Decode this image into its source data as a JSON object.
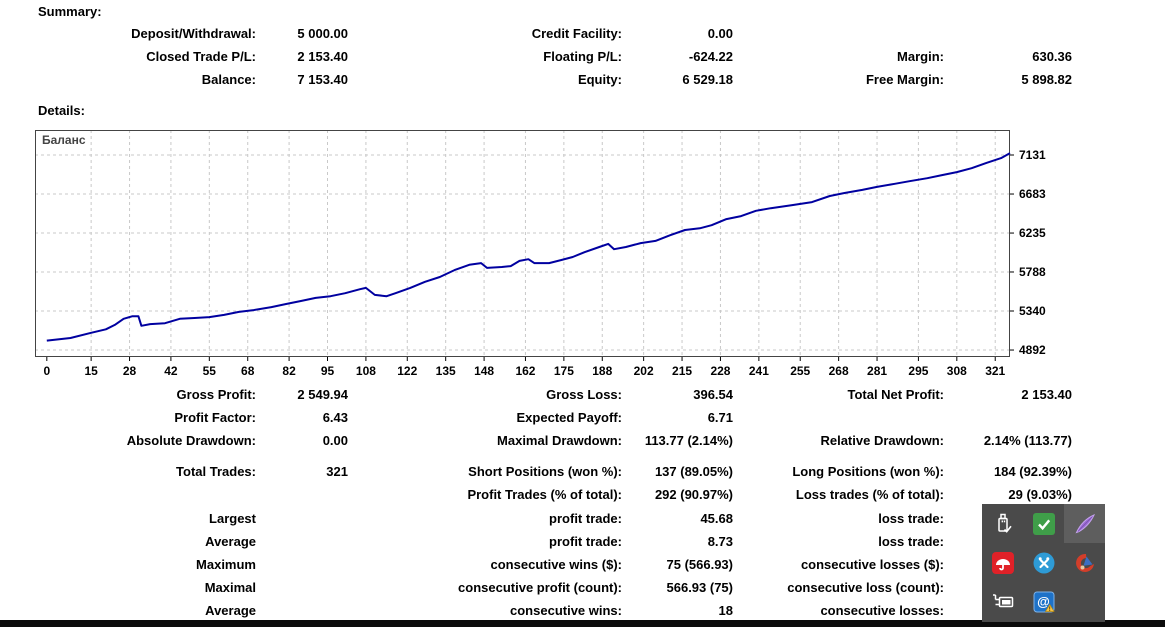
{
  "summary": {
    "heading": "Summary:",
    "rows": [
      [
        "Deposit/Withdrawal:",
        "5 000.00",
        "Credit Facility:",
        "0.00",
        "",
        ""
      ],
      [
        "Closed Trade P/L:",
        "2 153.40",
        "Floating P/L:",
        "-624.22",
        "Margin:",
        "630.36"
      ],
      [
        "Balance:",
        "7 153.40",
        "Equity:",
        "6 529.18",
        "Free Margin:",
        "5 898.82"
      ]
    ]
  },
  "details": {
    "heading": "Details:"
  },
  "stats": {
    "rows": [
      [
        "Gross Profit:",
        "2 549.94",
        "Gross Loss:",
        "396.54",
        "Total Net Profit:",
        "2 153.40"
      ],
      [
        "Profit Factor:",
        "6.43",
        "Expected Payoff:",
        "6.71",
        "",
        ""
      ],
      [
        "Absolute Drawdown:",
        "0.00",
        "Maximal Drawdown:",
        "113.77 (2.14%)",
        "Relative Drawdown:",
        "2.14% (113.77)"
      ]
    ]
  },
  "trades": {
    "rows": [
      [
        "Total Trades:",
        "321",
        "Short Positions (won %):",
        "137 (89.05%)",
        "Long Positions (won %):",
        "184 (92.39%)"
      ],
      [
        "",
        "",
        "Profit Trades (% of total):",
        "292 (90.97%)",
        "Loss trades (% of total):",
        "29 (9.03%)"
      ],
      [
        "Largest",
        "",
        "profit trade:",
        "45.68",
        "loss trade:",
        ""
      ],
      [
        "Average",
        "",
        "profit trade:",
        "8.73",
        "loss trade:",
        ""
      ],
      [
        "Maximum",
        "",
        "consecutive wins ($):",
        "75 (566.93)",
        "consecutive losses ($):",
        ""
      ],
      [
        "Maximal",
        "",
        "consecutive profit (count):",
        "566.93 (75)",
        "consecutive loss (count):",
        ""
      ],
      [
        "Average",
        "",
        "consecutive wins:",
        "18",
        "consecutive losses:",
        ""
      ]
    ]
  },
  "chart_data": {
    "type": "line",
    "title": "Баланс",
    "xlabel": "",
    "ylabel": "",
    "grid": true,
    "legend_position": "top-left",
    "x_ticks": [
      0,
      15,
      28,
      42,
      55,
      68,
      82,
      95,
      108,
      122,
      135,
      148,
      162,
      175,
      188,
      202,
      215,
      228,
      241,
      255,
      268,
      281,
      295,
      308,
      321
    ],
    "y_ticks": [
      4892,
      5340,
      5788,
      6235,
      6683,
      7131
    ],
    "xlim": [
      -4,
      326
    ],
    "ylim": [
      4812,
      7418
    ],
    "series": [
      {
        "name": "Баланс",
        "color": "#0000A0",
        "points": [
          [
            0,
            5000
          ],
          [
            8,
            5030
          ],
          [
            15,
            5090
          ],
          [
            20,
            5130
          ],
          [
            23,
            5180
          ],
          [
            26,
            5250
          ],
          [
            29,
            5280
          ],
          [
            31,
            5280
          ],
          [
            32,
            5170
          ],
          [
            35,
            5190
          ],
          [
            40,
            5200
          ],
          [
            45,
            5250
          ],
          [
            50,
            5260
          ],
          [
            55,
            5270
          ],
          [
            60,
            5295
          ],
          [
            65,
            5330
          ],
          [
            70,
            5350
          ],
          [
            76,
            5385
          ],
          [
            81,
            5420
          ],
          [
            86,
            5455
          ],
          [
            91,
            5490
          ],
          [
            96,
            5510
          ],
          [
            101,
            5545
          ],
          [
            106,
            5590
          ],
          [
            108,
            5605
          ],
          [
            111,
            5525
          ],
          [
            115,
            5510
          ],
          [
            118,
            5545
          ],
          [
            123,
            5605
          ],
          [
            128,
            5675
          ],
          [
            133,
            5730
          ],
          [
            138,
            5810
          ],
          [
            143,
            5870
          ],
          [
            147,
            5890
          ],
          [
            149,
            5835
          ],
          [
            154,
            5845
          ],
          [
            157,
            5855
          ],
          [
            160,
            5915
          ],
          [
            163,
            5935
          ],
          [
            165,
            5890
          ],
          [
            170,
            5890
          ],
          [
            174,
            5925
          ],
          [
            178,
            5960
          ],
          [
            182,
            6015
          ],
          [
            187,
            6075
          ],
          [
            190,
            6110
          ],
          [
            192,
            6050
          ],
          [
            196,
            6075
          ],
          [
            201,
            6120
          ],
          [
            206,
            6145
          ],
          [
            211,
            6210
          ],
          [
            216,
            6270
          ],
          [
            221,
            6290
          ],
          [
            225,
            6325
          ],
          [
            230,
            6395
          ],
          [
            235,
            6430
          ],
          [
            240,
            6490
          ],
          [
            245,
            6520
          ],
          [
            252,
            6555
          ],
          [
            259,
            6590
          ],
          [
            265,
            6660
          ],
          [
            270,
            6695
          ],
          [
            276,
            6730
          ],
          [
            281,
            6765
          ],
          [
            287,
            6800
          ],
          [
            292,
            6830
          ],
          [
            298,
            6865
          ],
          [
            303,
            6900
          ],
          [
            308,
            6935
          ],
          [
            313,
            6980
          ],
          [
            318,
            7040
          ],
          [
            323,
            7095
          ],
          [
            326,
            7153
          ]
        ]
      }
    ]
  },
  "colors": {
    "line": "#0000A0",
    "grid": "#c9c9c9",
    "chart_border": "#444444",
    "text": "#000000",
    "tray_bg": "#4a4a4a",
    "taskbar": "#0b0b0b",
    "green_check": "#3F9E49",
    "avira_red": "#E02128",
    "messenger_blue": "#2E9BD6",
    "cleaner_red": "#D23E2A",
    "mail_blue": "#1E72C8",
    "warning_yellow": "#F6C344",
    "feather_purple": "#9B6BD3"
  },
  "tray": {
    "icons": [
      "usb-safely-remove-icon",
      "green-check-icon",
      "feather-pen-icon",
      "avira-umbrella-icon",
      "blue-x-messenger-icon",
      "ccleaner-icon",
      "power-plug-icon",
      "mail-at-warning-icon"
    ]
  }
}
